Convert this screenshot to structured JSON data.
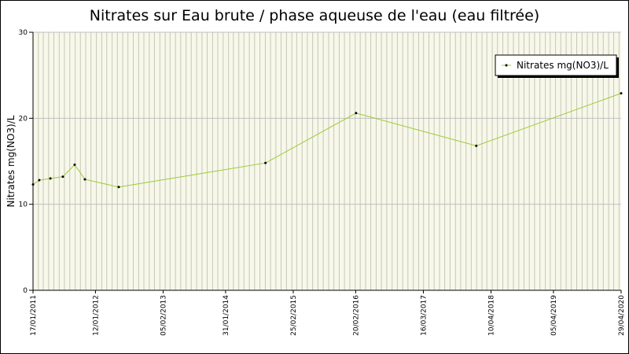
{
  "chart_data": {
    "type": "line",
    "title": "Nitrates sur Eau brute / phase aqueuse de l'eau (eau filtrée)",
    "y_label": "Nitrates mg(NO3)/L",
    "x": [
      "2011-01-17",
      "2011-02-22",
      "2011-04-27",
      "2011-07-08",
      "2011-09-14",
      "2011-11-12",
      "2012-05-25",
      "2014-09-18",
      "2016-02-22",
      "2018-01-15",
      "2020-04-29"
    ],
    "series": [
      {
        "name": "Nitrates mg(NO3)/L",
        "color": "#99cc33",
        "values": [
          12.3,
          12.8,
          13.0,
          13.2,
          14.6,
          12.9,
          12.0,
          14.8,
          20.6,
          16.8,
          22.9
        ]
      }
    ],
    "xlim": [
      "2011-01-17",
      "2020-04-29"
    ],
    "xticks": [
      {
        "value": "2011-01-17",
        "label": "17/01/2011"
      },
      {
        "value": "2012-01-12",
        "label": "12/01/2012"
      },
      {
        "value": "2013-02-05",
        "label": "05/02/2013"
      },
      {
        "value": "2014-01-31",
        "label": "31/01/2014"
      },
      {
        "value": "2015-02-25",
        "label": "25/02/2015"
      },
      {
        "value": "2016-02-20",
        "label": "20/02/2016"
      },
      {
        "value": "2017-03-16",
        "label": "16/03/2017"
      },
      {
        "value": "2018-04-10",
        "label": "10/04/2018"
      },
      {
        "value": "2019-04-05",
        "label": "05/04/2019"
      },
      {
        "value": "2020-04-29",
        "label": "29/04/2020"
      }
    ],
    "ylim": [
      0,
      30
    ],
    "yticks": [
      0,
      10,
      20,
      30
    ],
    "grid": true,
    "legend": "top-right"
  }
}
